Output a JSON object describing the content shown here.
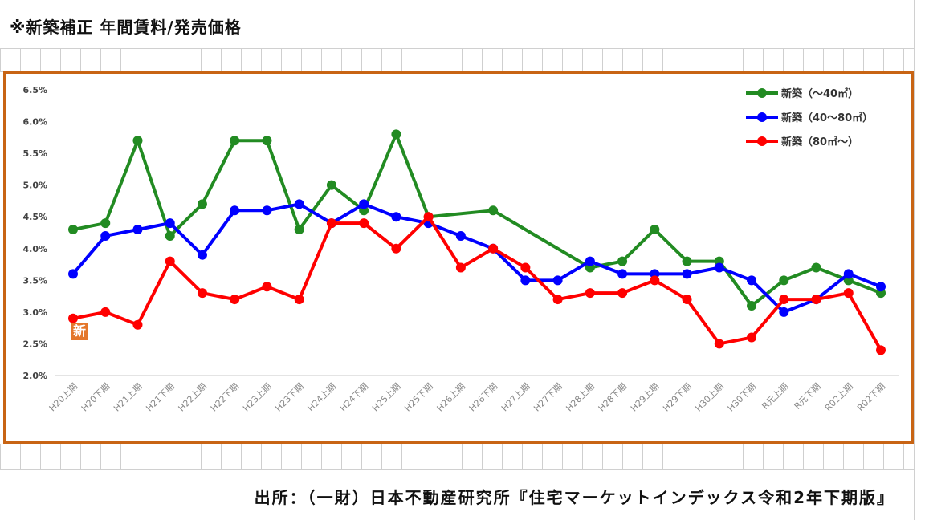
{
  "page": {
    "title": "※新築補正 年間賃料/発売価格",
    "source": "出所：（一財）日本不動産研究所『住宅マーケットインデックス令和2年下期版』",
    "badge_text": "新"
  },
  "colors": {
    "frame": "#c86414",
    "series_green": "#228b22",
    "series_blue": "#0000ff",
    "series_red": "#ff0000",
    "badge": "#e4762a"
  },
  "chart_data": {
    "type": "line",
    "title": "",
    "xlabel": "",
    "ylabel": "",
    "ylim": [
      2.0,
      6.5
    ],
    "y_ticks": [
      "2.0%",
      "2.5%",
      "3.0%",
      "3.5%",
      "4.0%",
      "4.5%",
      "5.0%",
      "5.5%",
      "6.0%",
      "6.5%"
    ],
    "y_tick_values": [
      2.0,
      2.5,
      3.0,
      3.5,
      4.0,
      4.5,
      5.0,
      5.5,
      6.0,
      6.5
    ],
    "grid": false,
    "legend_position": "top-right",
    "categories": [
      "H20上期",
      "H20下期",
      "H21上期",
      "H21下期",
      "H22上期",
      "H22下期",
      "H23上期",
      "H23下期",
      "H24上期",
      "H24下期",
      "H25上期",
      "H25下期",
      "H26上期",
      "H26下期",
      "H27上期",
      "H27下期",
      "H28上期",
      "H28下期",
      "H29上期",
      "H29下期",
      "H30上期",
      "H30下期",
      "R元上期",
      "R元下期",
      "R02上期",
      "R02下期"
    ],
    "series": [
      {
        "name": "新築（～40㎡）",
        "color": "#228b22",
        "values": [
          4.3,
          4.4,
          5.7,
          4.2,
          4.7,
          5.7,
          5.7,
          4.3,
          5.0,
          4.6,
          5.8,
          4.5,
          null,
          4.6,
          null,
          null,
          3.7,
          3.8,
          4.3,
          3.8,
          3.8,
          3.1,
          3.5,
          3.7,
          3.5,
          3.3
        ]
      },
      {
        "name": "新築（40～80㎡）",
        "color": "#0000ff",
        "values": [
          3.6,
          4.2,
          4.3,
          4.4,
          3.9,
          4.6,
          4.6,
          4.7,
          4.4,
          4.7,
          4.5,
          4.4,
          4.2,
          4.0,
          3.5,
          3.5,
          3.8,
          3.6,
          3.6,
          3.6,
          3.7,
          3.5,
          3.0,
          3.2,
          3.6,
          3.4
        ]
      },
      {
        "name": "新築（80㎡～）",
        "color": "#ff0000",
        "values": [
          2.9,
          3.0,
          2.8,
          3.8,
          3.3,
          3.2,
          3.4,
          3.2,
          4.4,
          4.4,
          4.0,
          4.5,
          3.7,
          4.0,
          3.7,
          3.2,
          3.3,
          3.3,
          3.5,
          3.2,
          2.5,
          2.6,
          3.2,
          3.2,
          3.3,
          2.4
        ]
      }
    ]
  }
}
